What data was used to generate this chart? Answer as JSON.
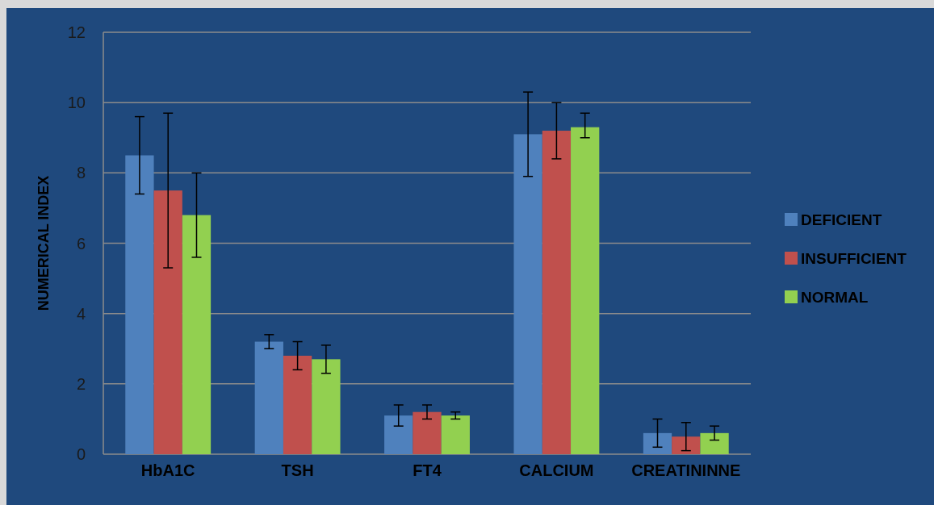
{
  "chart_data": {
    "type": "bar",
    "ylabel": "NUMERICAL INDEX",
    "categories": [
      "HbA1C",
      "TSH",
      "FT4",
      "CALCIUM",
      "CREATININNE"
    ],
    "series": [
      {
        "name": "DEFICIENT",
        "color": "#4f81bd",
        "values": [
          8.5,
          3.2,
          1.1,
          9.1,
          0.6
        ],
        "errors": [
          [
            7.4,
            9.6
          ],
          [
            3.0,
            3.4
          ],
          [
            0.8,
            1.4
          ],
          [
            7.9,
            10.3
          ],
          [
            0.2,
            1.0
          ]
        ]
      },
      {
        "name": "INSUFFICIENT",
        "color": "#c0504d",
        "values": [
          7.5,
          2.8,
          1.2,
          9.2,
          0.5
        ],
        "errors": [
          [
            5.3,
            9.7
          ],
          [
            2.4,
            3.2
          ],
          [
            1.0,
            1.4
          ],
          [
            8.4,
            10.0
          ],
          [
            0.1,
            0.9
          ]
        ]
      },
      {
        "name": "NORMAL",
        "color": "#92d050",
        "values": [
          6.8,
          2.7,
          1.1,
          9.3,
          0.6
        ],
        "errors": [
          [
            5.6,
            8.0
          ],
          [
            2.3,
            3.1
          ],
          [
            1.0,
            1.2
          ],
          [
            9.0,
            9.7
          ],
          [
            0.4,
            0.8
          ]
        ]
      }
    ],
    "ylim": [
      0,
      12
    ],
    "yticks": [
      0,
      2,
      4,
      6,
      8,
      10,
      12
    ],
    "grid": "y",
    "legend": "right"
  }
}
